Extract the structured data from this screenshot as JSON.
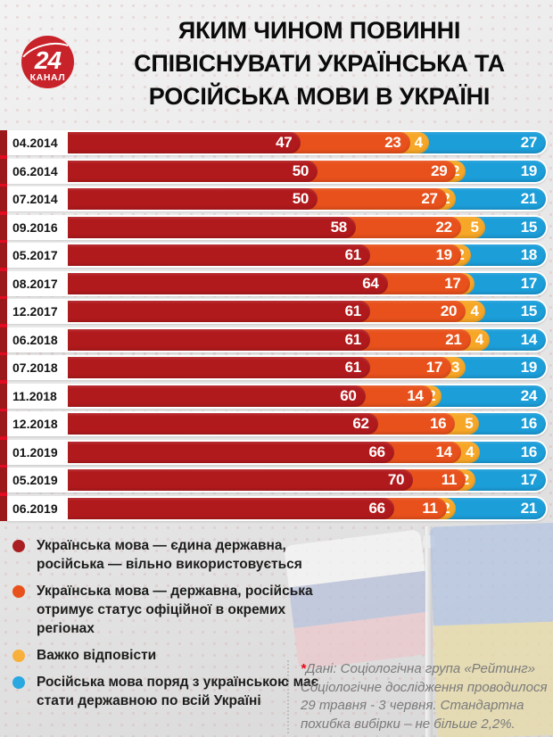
{
  "logo": {
    "number": "24",
    "channel": "КАНАЛ"
  },
  "header": {
    "title_lines": [
      "ЯКИМ ЧИНОМ ПОВИННІ",
      "СПІВІСНУВАТИ УКРАЇНСЬКА ТА",
      "РОСІЙСЬКА МОВИ В УКРАЇНІ"
    ]
  },
  "chart_data": {
    "type": "bar",
    "orientation": "horizontal",
    "stacked": true,
    "unit": "%",
    "title": "Яким чином повинні співіснувати українська та російська мови в Україні",
    "categories": [
      "04.2014",
      "06.2014",
      "07.2014",
      "09.2016",
      "05.2017",
      "08.2017",
      "12.2017",
      "06.2018",
      "07.2018",
      "11.2018",
      "12.2018",
      "01.2019",
      "05.2019",
      "06.2019"
    ],
    "series": [
      {
        "name": "Українська мова — єдина державна, російська — вільно використовується",
        "color": "#b11a1d",
        "values": [
          47,
          50,
          50,
          58,
          61,
          64,
          61,
          61,
          61,
          60,
          62,
          66,
          70,
          66
        ]
      },
      {
        "name": "Українська мова — державна, російська отримує статус офіційної в окремих регіонах",
        "color": "#e8511c",
        "values": [
          23,
          29,
          27,
          22,
          19,
          17,
          20,
          21,
          17,
          14,
          16,
          14,
          11,
          11
        ]
      },
      {
        "name": "Важко відповісти",
        "color": "#f7a727",
        "values": [
          4,
          2,
          2,
          5,
          2,
          1,
          4,
          4,
          3,
          2,
          5,
          4,
          2,
          2
        ]
      },
      {
        "name": "Російська мова поряд з українською має стати державною по всій Україні",
        "color": "#1c9ed9",
        "values": [
          27,
          19,
          21,
          15,
          18,
          17,
          15,
          14,
          19,
          24,
          16,
          16,
          17,
          21
        ]
      }
    ],
    "legend_position": "bottom-left",
    "grid": false
  },
  "legend": {
    "items": [
      {
        "label": "Українська мова — єдина державна, російська — вільно використовується",
        "color": "#a91e22"
      },
      {
        "label": "Українська мова — державна, російська отримує статус офіційної в окремих регіонах",
        "color": "#e8511c"
      },
      {
        "label": "Важко відповісти",
        "color": "#f9b03a"
      },
      {
        "label": "Російська мова поряд з українською має стати державною по всій Україні",
        "color": "#29a8e1"
      }
    ]
  },
  "footnote": {
    "asterisk": "*",
    "text": "Дані:  Соціологічна група «Рейтинг» Соціологічне дослідження проводилося 29 травня - 3 червня. Стандартна похибка вибірки – не більше 2,2%."
  },
  "colors": {
    "left_strip": "#e30b20",
    "row_edge": "#9b181b",
    "logo_red": "#c8232b"
  }
}
